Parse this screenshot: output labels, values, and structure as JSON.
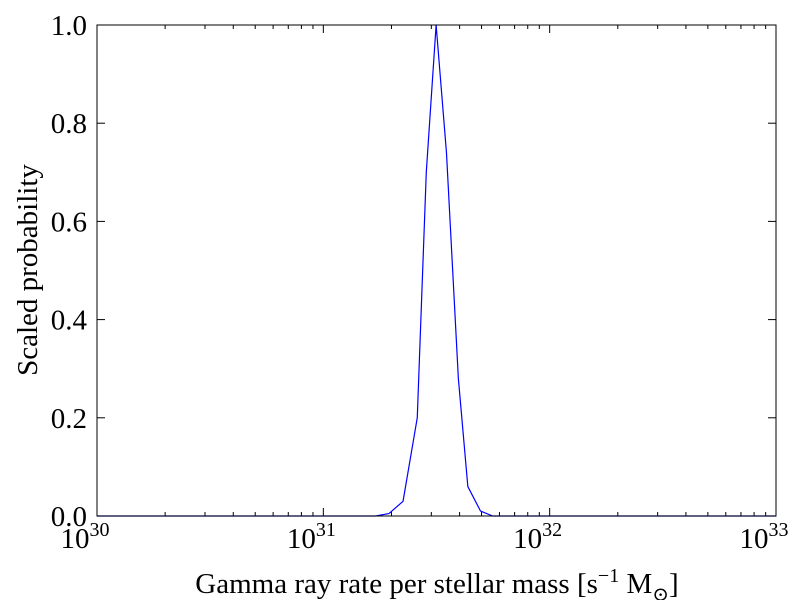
{
  "chart_data": {
    "type": "line",
    "title": "",
    "xlabel": "Gamma ray rate per stellar mass [s",
    "xlabel_sup": "−1",
    "xlabel_unit": " M",
    "xlabel_sub": "⊙",
    "xlabel_close": "]",
    "ylabel": "Scaled probability",
    "xscale": "log",
    "xlim": [
      1e+30,
      1e+33
    ],
    "ylim": [
      0.0,
      1.0
    ],
    "grid": false,
    "x_ticks": [
      {
        "value": 1e+30,
        "base": "10",
        "exp": "30"
      },
      {
        "value": 1e+31,
        "base": "10",
        "exp": "31"
      },
      {
        "value": 1e+32,
        "base": "10",
        "exp": "32"
      },
      {
        "value": 1e+33,
        "base": "10",
        "exp": "33"
      }
    ],
    "y_ticks": [
      {
        "value": 0.0,
        "label": "0.0"
      },
      {
        "value": 0.2,
        "label": "0.2"
      },
      {
        "value": 0.4,
        "label": "0.4"
      },
      {
        "value": 0.6,
        "label": "0.6"
      },
      {
        "value": 0.8,
        "label": "0.8"
      },
      {
        "value": 1.0,
        "label": "1.0"
      }
    ],
    "series": [
      {
        "color": "#0000ff",
        "x": [
          1e+30,
          1e+31,
          1.7e+31,
          1.95e+31,
          2.25e+31,
          2.6e+31,
          2.85e+31,
          3.15e+31,
          3.5e+31,
          3.95e+31,
          4.35e+31,
          4.95e+31,
          5.6e+31,
          6.5e+31,
          1e+32,
          1e+33
        ],
        "y": [
          0.0,
          0.0,
          0.0,
          0.005,
          0.03,
          0.2,
          0.7,
          1.0,
          0.74,
          0.28,
          0.06,
          0.01,
          0.0,
          0.0,
          0.0,
          0.0
        ]
      }
    ]
  }
}
